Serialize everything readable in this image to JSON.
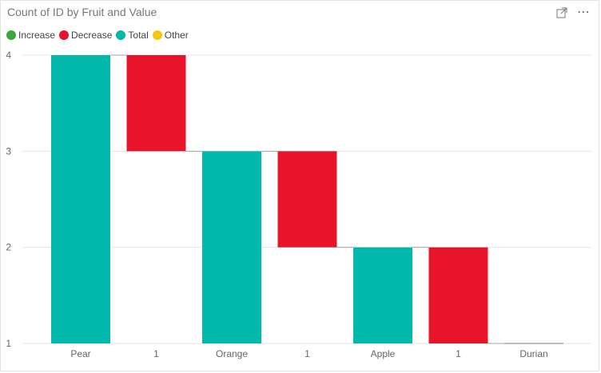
{
  "title": "Count of ID by Fruit and Value",
  "legend": [
    {
      "label": "Increase",
      "color": "#3aa83a"
    },
    {
      "label": "Decrease",
      "color": "#e8142a"
    },
    {
      "label": "Total",
      "color": "#01b8aa"
    },
    {
      "label": "Other",
      "color": "#f2c80f"
    }
  ],
  "icons": {
    "focus": "focus-mode-icon",
    "more": "more-options-icon"
  },
  "chart_data": {
    "type": "waterfall",
    "title": "Count of ID by Fruit and Value",
    "xlabel": "",
    "ylabel": "",
    "ylim": [
      1,
      4
    ],
    "yticks": [
      "1",
      "2",
      "3",
      "4"
    ],
    "grid": true,
    "legend_position": "top-left",
    "categories": [
      "Pear",
      "1",
      "Orange",
      "1",
      "Apple",
      "1",
      "Durian"
    ],
    "bars": [
      {
        "category": "Pear",
        "kind": "Total",
        "start": 1,
        "end": 4
      },
      {
        "category": "1",
        "kind": "Decrease",
        "start": 4,
        "end": 3
      },
      {
        "category": "Orange",
        "kind": "Total",
        "start": 1,
        "end": 3
      },
      {
        "category": "1",
        "kind": "Decrease",
        "start": 3,
        "end": 2
      },
      {
        "category": "Apple",
        "kind": "Total",
        "start": 1,
        "end": 2
      },
      {
        "category": "1",
        "kind": "Decrease",
        "start": 2,
        "end": 1
      },
      {
        "category": "Durian",
        "kind": "Total",
        "start": 1,
        "end": 1
      }
    ],
    "colors": {
      "Increase": "#3aa83a",
      "Decrease": "#e8142a",
      "Total": "#01b8aa",
      "Other": "#f2c80f"
    }
  }
}
